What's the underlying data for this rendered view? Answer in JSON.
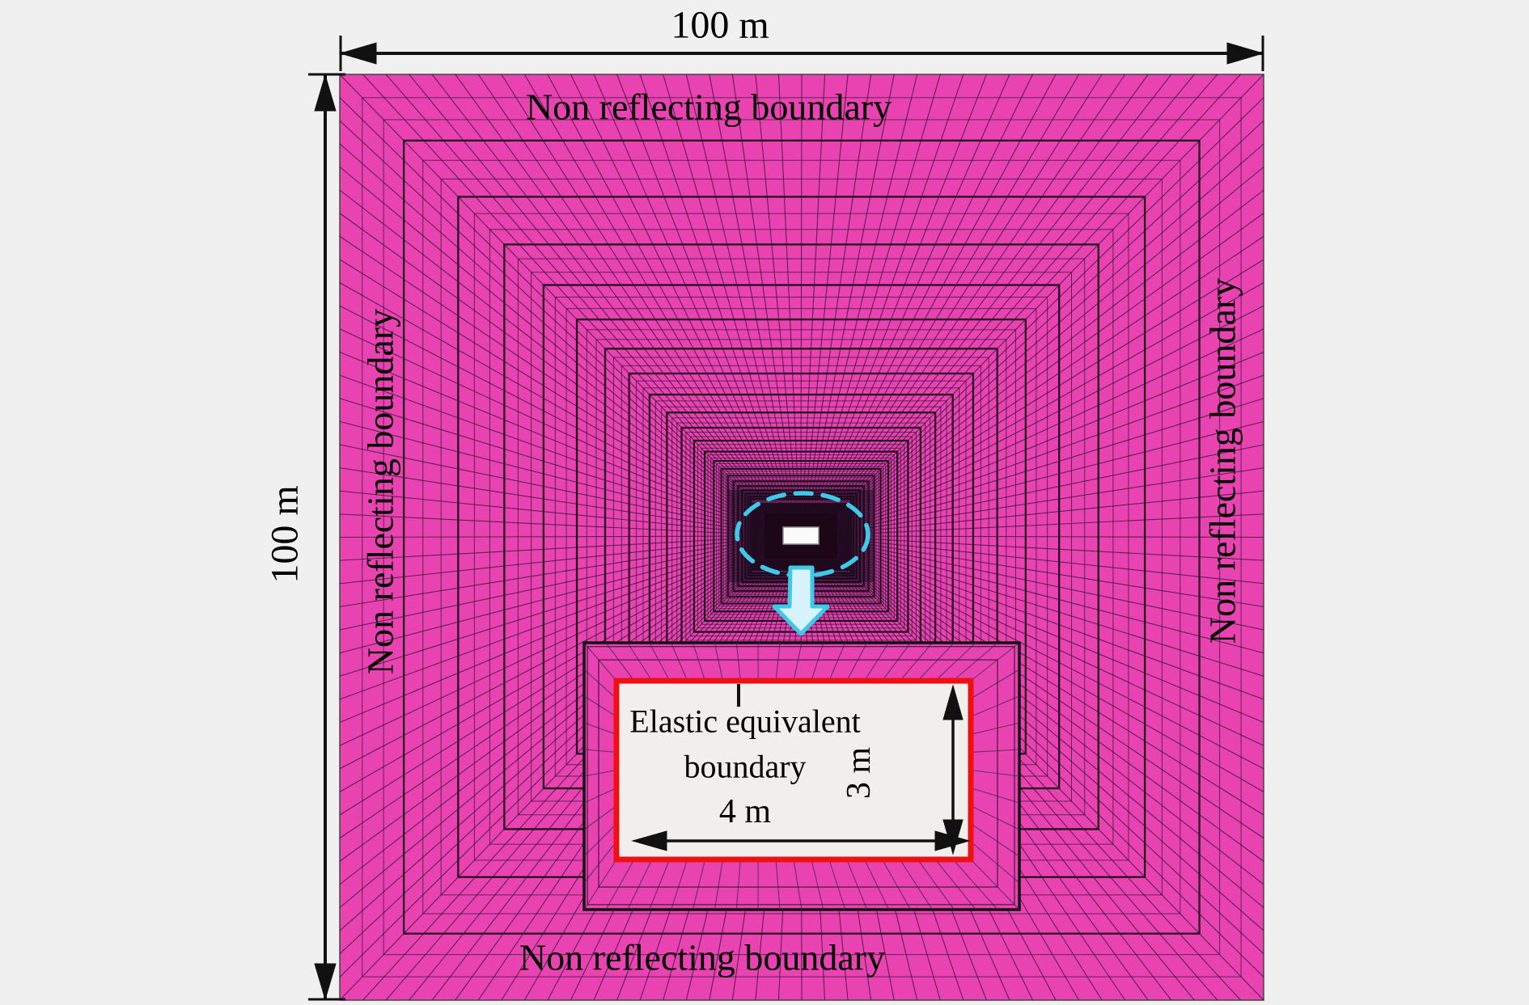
{
  "figure": {
    "title_hint": "Finite element mesh with non-reflecting boundaries",
    "dimensions": {
      "width_label": "100 m",
      "height_label": "100 m"
    },
    "boundaries": {
      "top": "Non reflecting boundary",
      "bottom": "Non reflecting boundary",
      "left": "Non reflecting boundary",
      "right": "Non reflecting boundary"
    },
    "inset": {
      "label_line1": "Elastic equivalent",
      "label_line2": "boundary",
      "width_label": "4 m",
      "height_label": "3 m"
    },
    "colors": {
      "mesh_pink": "#e843b0",
      "mesh_line_thin": "rgba(48,22,52,0.72)",
      "mesh_line_thick": "rgba(8,4,10,0.88)",
      "mesh_radial": "rgba(40,16,46,0.70)",
      "inset_fan_line": "rgba(70,35,80,0.75)",
      "accent_cyan": "#3ec9e9",
      "elastic_boundary_red": "#ee1111",
      "annotation_black": "#111111",
      "background_gray": "#f0f0f0",
      "cavity_white": "#fbfbfb"
    }
  }
}
